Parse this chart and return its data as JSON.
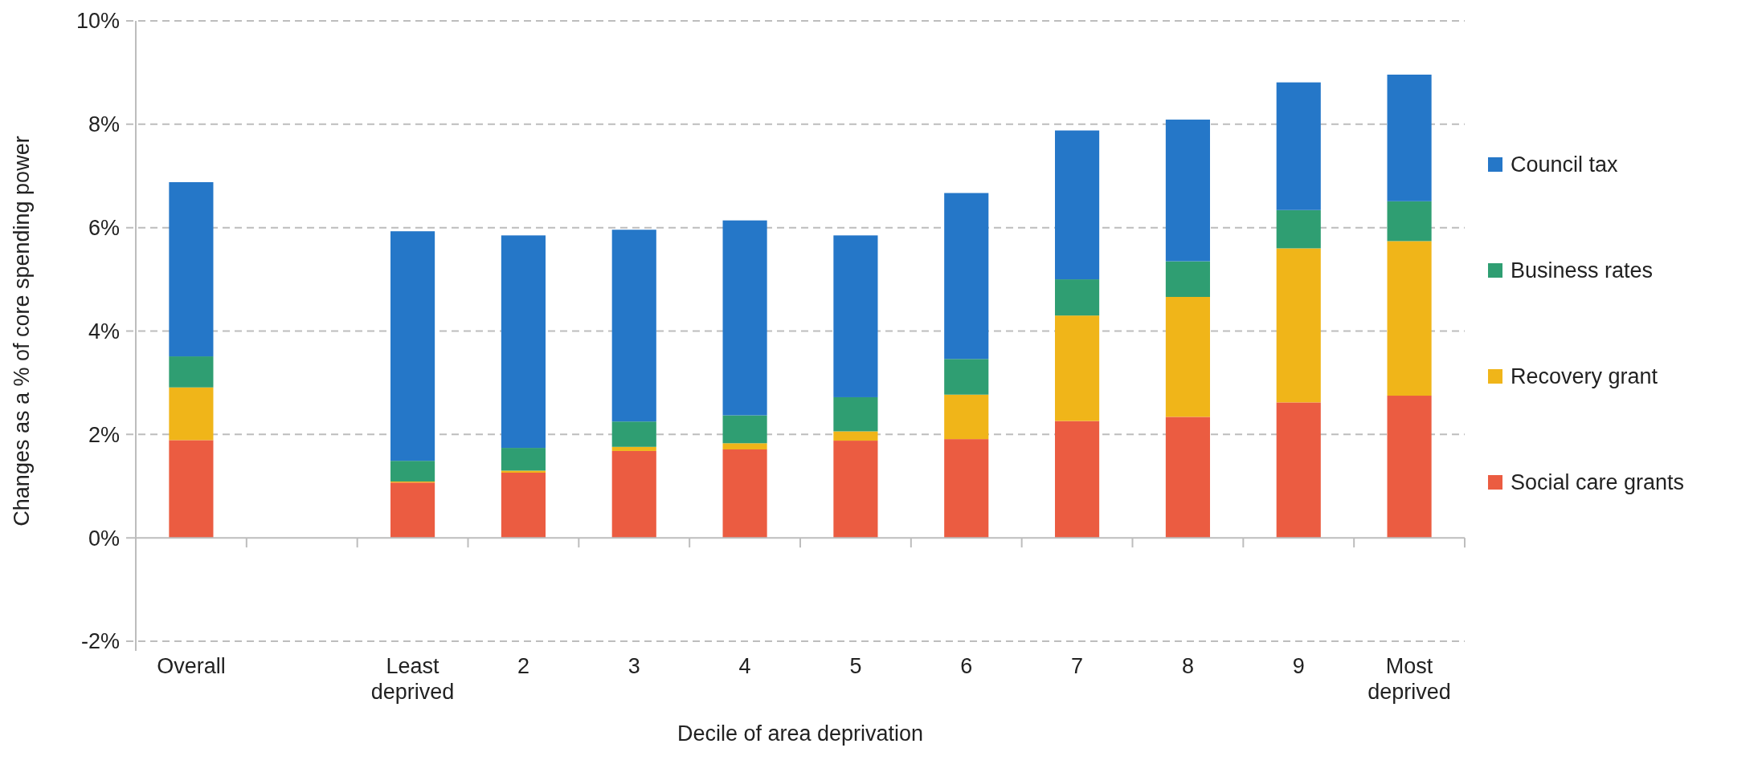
{
  "chart_data": {
    "type": "bar",
    "stacked": true,
    "xlabel": "Decile of area deprivation",
    "ylabel": "Changes as a % of core spending power",
    "categories": [
      "Overall",
      null,
      "Least deprived",
      "2",
      "3",
      "4",
      "5",
      "6",
      "7",
      "8",
      "9",
      "Most deprived"
    ],
    "series": [
      {
        "name": "Social care grants",
        "color": "#eb5c41",
        "values": [
          1.89,
          null,
          1.07,
          1.26,
          1.68,
          1.71,
          1.88,
          1.91,
          2.26,
          2.34,
          2.62,
          2.75
        ]
      },
      {
        "name": "Recovery grant",
        "color": "#f0b519",
        "values": [
          1.02,
          null,
          0.02,
          0.04,
          0.08,
          0.12,
          0.18,
          0.86,
          2.04,
          2.32,
          2.98,
          2.99
        ]
      },
      {
        "name": "Business rates",
        "color": "#2f9e72",
        "values": [
          0.6,
          null,
          0.4,
          0.44,
          0.49,
          0.54,
          0.66,
          0.69,
          0.7,
          0.69,
          0.74,
          0.77
        ]
      },
      {
        "name": "Council tax",
        "color": "#2577c8",
        "values": [
          3.37,
          null,
          4.44,
          4.11,
          3.71,
          3.77,
          3.13,
          3.21,
          2.88,
          2.74,
          2.47,
          2.45
        ]
      }
    ],
    "ylim": [
      -2,
      10
    ],
    "yticks": [
      {
        "value": -2,
        "label": "-2%"
      },
      {
        "value": 0,
        "label": "0%"
      },
      {
        "value": 2,
        "label": "2%"
      },
      {
        "value": 4,
        "label": "4%"
      },
      {
        "value": 6,
        "label": "6%"
      },
      {
        "value": 8,
        "label": "8%"
      },
      {
        "value": 10,
        "label": "10%"
      }
    ],
    "grid": "y",
    "legend": "right"
  }
}
